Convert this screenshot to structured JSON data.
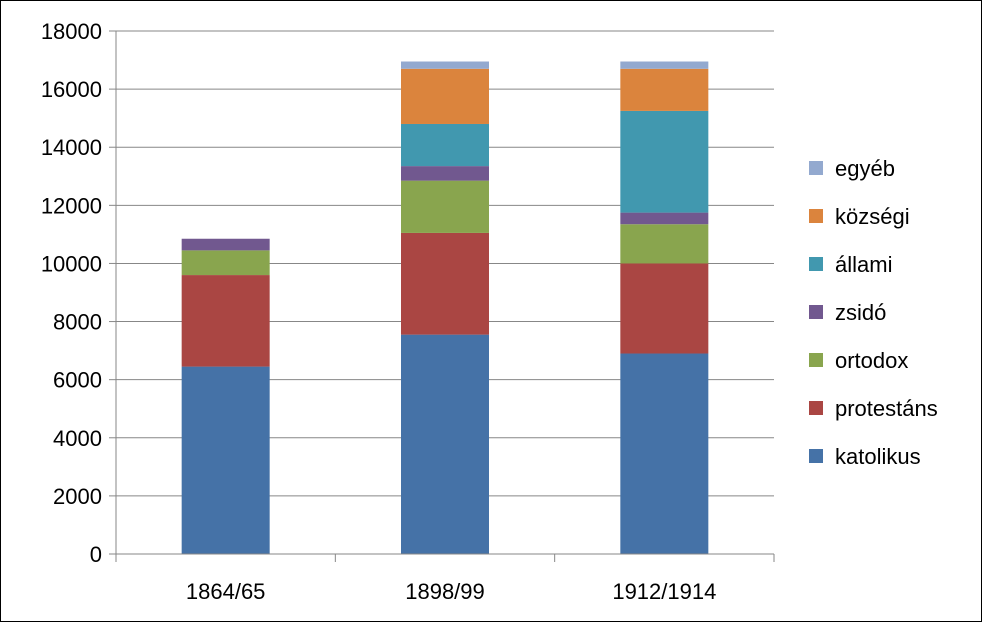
{
  "chart_data": {
    "type": "bar",
    "stacked": true,
    "title": "",
    "xlabel": "",
    "ylabel": "",
    "categories": [
      "1864/65",
      "1898/99",
      "1912/1914"
    ],
    "ylim": [
      0,
      18000
    ],
    "yticks": [
      0,
      2000,
      4000,
      6000,
      8000,
      10000,
      12000,
      14000,
      16000,
      18000
    ],
    "grid": true,
    "legend_position": "right",
    "series": [
      {
        "name": "katolikus",
        "color": "#4572A7",
        "values": [
          6450,
          7550,
          6900
        ]
      },
      {
        "name": "protestáns",
        "color": "#AA4643",
        "values": [
          3150,
          3500,
          3100
        ]
      },
      {
        "name": "ortodox",
        "color": "#89A54E",
        "values": [
          850,
          1800,
          1350
        ]
      },
      {
        "name": "zsidó",
        "color": "#71588F",
        "values": [
          400,
          500,
          400
        ]
      },
      {
        "name": "állami",
        "color": "#4198AF",
        "values": [
          0,
          1450,
          3500
        ]
      },
      {
        "name": "községi",
        "color": "#DB843D",
        "values": [
          0,
          1900,
          1450
        ]
      },
      {
        "name": "egyéb",
        "color": "#93A9CF",
        "values": [
          0,
          250,
          250
        ]
      }
    ]
  }
}
